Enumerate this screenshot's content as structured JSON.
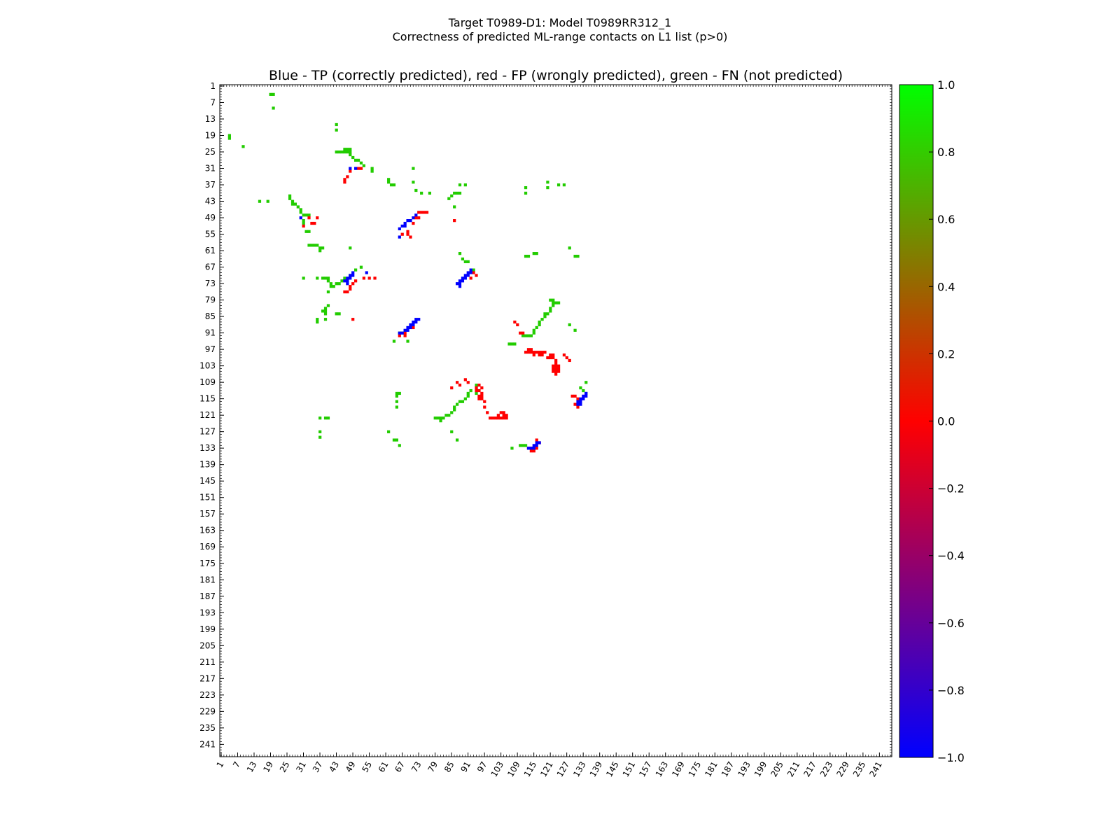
{
  "suptitle_line1": "Target T0989-D1: Model T0989RR312_1",
  "suptitle_line2": "Correctness of predicted ML-range contacts on L1 list (p>0)",
  "chart_data": {
    "type": "heatmap",
    "title": "Blue - TP (correctly predicted), red - FP (wrongly predicted), green - FN (not predicted)",
    "xlabel": "",
    "ylabel": "",
    "xlim": [
      1,
      245
    ],
    "ylim": [
      245,
      1
    ],
    "y_axis_inverted": true,
    "x_tick_labels": [
      "1",
      "7",
      "13",
      "19",
      "25",
      "31",
      "37",
      "43",
      "49",
      "55",
      "61",
      "67",
      "73",
      "79",
      "85",
      "91",
      "97",
      "103",
      "109",
      "115",
      "121",
      "127",
      "133",
      "139",
      "145",
      "151",
      "157",
      "163",
      "169",
      "175",
      "181",
      "187",
      "193",
      "199",
      "205",
      "211",
      "217",
      "223",
      "229",
      "235",
      "241"
    ],
    "y_tick_labels": [
      "1",
      "7",
      "13",
      "19",
      "25",
      "31",
      "37",
      "43",
      "49",
      "55",
      "61",
      "67",
      "73",
      "79",
      "85",
      "91",
      "97",
      "103",
      "109",
      "115",
      "121",
      "127",
      "133",
      "139",
      "145",
      "151",
      "157",
      "163",
      "169",
      "175",
      "181",
      "187",
      "193",
      "199",
      "205",
      "211",
      "217",
      "223",
      "229",
      "235",
      "241"
    ],
    "colorbar": {
      "range": [
        -1.0,
        1.0
      ],
      "colors": [
        "#0000ff",
        "#ff0000",
        "#00ff00"
      ],
      "tick_labels": [
        "1.0",
        "0.8",
        "0.6",
        "0.4",
        "0.2",
        "0.0",
        "−0.2",
        "−0.4",
        "−0.6",
        "−0.8",
        "−1.0"
      ]
    },
    "category_colors": {
      "TP": "#0000ff",
      "FP": "#ff0000",
      "FN": "#22cc00"
    },
    "cells": {
      "FN": [
        [
          19,
          4
        ],
        [
          20,
          4
        ],
        [
          20,
          9
        ],
        [
          4,
          19
        ],
        [
          4,
          20
        ],
        [
          9,
          23
        ],
        [
          43,
          15
        ],
        [
          43,
          17
        ],
        [
          43,
          25
        ],
        [
          44,
          25
        ],
        [
          45,
          25
        ],
        [
          46,
          24
        ],
        [
          47,
          24
        ],
        [
          48,
          24
        ],
        [
          46,
          25
        ],
        [
          47,
          25
        ],
        [
          48,
          25
        ],
        [
          48,
          26
        ],
        [
          49,
          27
        ],
        [
          50,
          28
        ],
        [
          51,
          28
        ],
        [
          52,
          29
        ],
        [
          53,
          30
        ],
        [
          56,
          31
        ],
        [
          56,
          32
        ],
        [
          62,
          35
        ],
        [
          62,
          36
        ],
        [
          63,
          37
        ],
        [
          64,
          37
        ],
        [
          71,
          31
        ],
        [
          71,
          36
        ],
        [
          72,
          39
        ],
        [
          74,
          40
        ],
        [
          77,
          40
        ],
        [
          84,
          42
        ],
        [
          85,
          41
        ],
        [
          86,
          40
        ],
        [
          87,
          40
        ],
        [
          88,
          40
        ],
        [
          90,
          37
        ],
        [
          88,
          37
        ],
        [
          86,
          45
        ],
        [
          15,
          43
        ],
        [
          18,
          43
        ],
        [
          26,
          41
        ],
        [
          26,
          42
        ],
        [
          27,
          43
        ],
        [
          27,
          44
        ],
        [
          28,
          44
        ],
        [
          29,
          45
        ],
        [
          30,
          46
        ],
        [
          30,
          47
        ],
        [
          31,
          48
        ],
        [
          32,
          48
        ],
        [
          33,
          48
        ],
        [
          31,
          50
        ],
        [
          31,
          51
        ],
        [
          32,
          54
        ],
        [
          33,
          54
        ],
        [
          33,
          59
        ],
        [
          34,
          59
        ],
        [
          35,
          59
        ],
        [
          36,
          59
        ],
        [
          37,
          60
        ],
        [
          37,
          61
        ],
        [
          38,
          60
        ],
        [
          31,
          71
        ],
        [
          36,
          71
        ],
        [
          38,
          71
        ],
        [
          39,
          71
        ],
        [
          40,
          71
        ],
        [
          40,
          72
        ],
        [
          41,
          73
        ],
        [
          41,
          74
        ],
        [
          42,
          74
        ],
        [
          40,
          76
        ],
        [
          43,
          73
        ],
        [
          44,
          73
        ],
        [
          45,
          72
        ],
        [
          46,
          71
        ],
        [
          48,
          70
        ],
        [
          50,
          68
        ],
        [
          52,
          67
        ],
        [
          48,
          60
        ],
        [
          40,
          81
        ],
        [
          39,
          82
        ],
        [
          38,
          83
        ],
        [
          39,
          83
        ],
        [
          39,
          84
        ],
        [
          36,
          86
        ],
        [
          36,
          87
        ],
        [
          39,
          86
        ],
        [
          43,
          84
        ],
        [
          44,
          84
        ],
        [
          64,
          94
        ],
        [
          69,
          94
        ],
        [
          66,
          91
        ],
        [
          67,
          91
        ],
        [
          88,
          62
        ],
        [
          89,
          64
        ],
        [
          90,
          65
        ],
        [
          91,
          65
        ],
        [
          93,
          68
        ],
        [
          112,
          63
        ],
        [
          113,
          63
        ],
        [
          115,
          62
        ],
        [
          116,
          62
        ],
        [
          128,
          60
        ],
        [
          130,
          63
        ],
        [
          131,
          63
        ],
        [
          111,
          92
        ],
        [
          112,
          92
        ],
        [
          113,
          92
        ],
        [
          114,
          92
        ],
        [
          115,
          91
        ],
        [
          115,
          90
        ],
        [
          116,
          89
        ],
        [
          117,
          88
        ],
        [
          117,
          87
        ],
        [
          118,
          86
        ],
        [
          119,
          85
        ],
        [
          119,
          84
        ],
        [
          120,
          84
        ],
        [
          121,
          83
        ],
        [
          121,
          82
        ],
        [
          122,
          81
        ],
        [
          122,
          80
        ],
        [
          121,
          79
        ],
        [
          122,
          79
        ],
        [
          123,
          80
        ],
        [
          124,
          80
        ],
        [
          106,
          95
        ],
        [
          107,
          95
        ],
        [
          108,
          95
        ],
        [
          128,
          88
        ],
        [
          130,
          90
        ],
        [
          112,
          38
        ],
        [
          112,
          40
        ],
        [
          120,
          38
        ],
        [
          120,
          36
        ],
        [
          124,
          37
        ],
        [
          126,
          37
        ],
        [
          65,
          113
        ],
        [
          66,
          113
        ],
        [
          65,
          114
        ],
        [
          65,
          116
        ],
        [
          65,
          118
        ],
        [
          64,
          130
        ],
        [
          65,
          130
        ],
        [
          66,
          132
        ],
        [
          62,
          127
        ],
        [
          37,
          122
        ],
        [
          39,
          122
        ],
        [
          40,
          122
        ],
        [
          37,
          127
        ],
        [
          37,
          129
        ],
        [
          79,
          122
        ],
        [
          80,
          122
        ],
        [
          81,
          122
        ],
        [
          81,
          123
        ],
        [
          82,
          122
        ],
        [
          83,
          121
        ],
        [
          84,
          121
        ],
        [
          85,
          120
        ],
        [
          86,
          119
        ],
        [
          86,
          118
        ],
        [
          87,
          117
        ],
        [
          88,
          116
        ],
        [
          89,
          116
        ],
        [
          90,
          115
        ],
        [
          91,
          114
        ],
        [
          91,
          113
        ],
        [
          85,
          127
        ],
        [
          87,
          130
        ],
        [
          94,
          110
        ],
        [
          94,
          111
        ],
        [
          94,
          113
        ],
        [
          92,
          112
        ],
        [
          107,
          133
        ],
        [
          110,
          132
        ],
        [
          111,
          132
        ],
        [
          112,
          132
        ],
        [
          132,
          111
        ],
        [
          133,
          112
        ],
        [
          134,
          113
        ],
        [
          134,
          109
        ]
      ],
      "TP": [
        [
          48,
          31
        ],
        [
          50,
          31
        ],
        [
          30,
          49
        ],
        [
          49,
          69
        ],
        [
          48,
          70
        ],
        [
          49,
          70
        ],
        [
          47,
          71
        ],
        [
          48,
          71
        ],
        [
          46,
          72
        ],
        [
          47,
          72
        ],
        [
          47,
          73
        ],
        [
          54,
          69
        ],
        [
          72,
          48
        ],
        [
          71,
          49
        ],
        [
          70,
          50
        ],
        [
          69,
          50
        ],
        [
          68,
          51
        ],
        [
          67,
          52
        ],
        [
          68,
          52
        ],
        [
          66,
          53
        ],
        [
          66,
          56
        ],
        [
          92,
          68
        ],
        [
          91,
          69
        ],
        [
          92,
          69
        ],
        [
          90,
          70
        ],
        [
          91,
          70
        ],
        [
          89,
          71
        ],
        [
          90,
          71
        ],
        [
          88,
          72
        ],
        [
          89,
          72
        ],
        [
          87,
          73
        ],
        [
          88,
          73
        ],
        [
          88,
          74
        ],
        [
          72,
          86
        ],
        [
          73,
          86
        ],
        [
          71,
          87
        ],
        [
          72,
          87
        ],
        [
          70,
          88
        ],
        [
          71,
          88
        ],
        [
          69,
          89
        ],
        [
          70,
          89
        ],
        [
          68,
          90
        ],
        [
          69,
          90
        ],
        [
          66,
          91
        ],
        [
          67,
          91
        ],
        [
          115,
          132
        ],
        [
          116,
          131
        ],
        [
          114,
          133
        ],
        [
          115,
          133
        ],
        [
          113,
          133
        ],
        [
          116,
          132
        ],
        [
          117,
          131
        ],
        [
          131,
          117
        ],
        [
          132,
          117
        ],
        [
          132,
          116
        ],
        [
          133,
          115
        ],
        [
          133,
          114
        ],
        [
          134,
          114
        ],
        [
          134,
          113
        ],
        [
          131,
          116
        ],
        [
          132,
          115
        ]
      ],
      "FP": [
        [
          46,
          35
        ],
        [
          46,
          36
        ],
        [
          47,
          34
        ],
        [
          51,
          31
        ],
        [
          52,
          31
        ],
        [
          48,
          32
        ],
        [
          73,
          47
        ],
        [
          74,
          47
        ],
        [
          75,
          47
        ],
        [
          76,
          47
        ],
        [
          72,
          49
        ],
        [
          73,
          49
        ],
        [
          71,
          51
        ],
        [
          69,
          54
        ],
        [
          69,
          55
        ],
        [
          70,
          56
        ],
        [
          67,
          55
        ],
        [
          86,
          50
        ],
        [
          33,
          49
        ],
        [
          34,
          51
        ],
        [
          35,
          51
        ],
        [
          31,
          52
        ],
        [
          36,
          49
        ],
        [
          50,
          72
        ],
        [
          49,
          73
        ],
        [
          48,
          74
        ],
        [
          48,
          75
        ],
        [
          47,
          76
        ],
        [
          46,
          76
        ],
        [
          55,
          71
        ],
        [
          57,
          71
        ],
        [
          53,
          71
        ],
        [
          49,
          86
        ],
        [
          92,
          71
        ],
        [
          94,
          70
        ],
        [
          93,
          69
        ],
        [
          71,
          89
        ],
        [
          68,
          91
        ],
        [
          68,
          92
        ],
        [
          66,
          92
        ],
        [
          108,
          87
        ],
        [
          109,
          88
        ],
        [
          110,
          91
        ],
        [
          111,
          91
        ],
        [
          112,
          98
        ],
        [
          113,
          98
        ],
        [
          114,
          98
        ],
        [
          115,
          98
        ],
        [
          116,
          98
        ],
        [
          117,
          98
        ],
        [
          118,
          98
        ],
        [
          119,
          98
        ],
        [
          115,
          99
        ],
        [
          117,
          99
        ],
        [
          118,
          99
        ],
        [
          121,
          99
        ],
        [
          122,
          99
        ],
        [
          121,
          100
        ],
        [
          122,
          100
        ],
        [
          123,
          101
        ],
        [
          120,
          100
        ],
        [
          113,
          97
        ],
        [
          114,
          97
        ],
        [
          123,
          102
        ],
        [
          122,
          103
        ],
        [
          123,
          103
        ],
        [
          124,
          103
        ],
        [
          122,
          104
        ],
        [
          123,
          104
        ],
        [
          124,
          104
        ],
        [
          122,
          105
        ],
        [
          123,
          105
        ],
        [
          124,
          105
        ],
        [
          123,
          106
        ],
        [
          127,
          100
        ],
        [
          128,
          101
        ],
        [
          126,
          99
        ],
        [
          91,
          109
        ],
        [
          90,
          108
        ],
        [
          87,
          109
        ],
        [
          88,
          110
        ],
        [
          85,
          111
        ],
        [
          94,
          111
        ],
        [
          95,
          110
        ],
        [
          95,
          112
        ],
        [
          96,
          111
        ],
        [
          94,
          112
        ],
        [
          96,
          113
        ],
        [
          95,
          114
        ],
        [
          95,
          115
        ],
        [
          96,
          115
        ],
        [
          97,
          116
        ],
        [
          96,
          114
        ],
        [
          97,
          118
        ],
        [
          98,
          120
        ],
        [
          101,
          122
        ],
        [
          102,
          121
        ],
        [
          103,
          120
        ],
        [
          104,
          120
        ],
        [
          104,
          121
        ],
        [
          105,
          121
        ],
        [
          103,
          122
        ],
        [
          102,
          122
        ],
        [
          104,
          122
        ],
        [
          105,
          122
        ],
        [
          100,
          122
        ],
        [
          99,
          122
        ],
        [
          114,
          133
        ],
        [
          113,
          133
        ],
        [
          114,
          134
        ],
        [
          115,
          134
        ],
        [
          116,
          130
        ],
        [
          117,
          131
        ],
        [
          116,
          133
        ],
        [
          129,
          114
        ],
        [
          130,
          114
        ],
        [
          131,
          115
        ],
        [
          132,
          116
        ],
        [
          130,
          117
        ],
        [
          131,
          118
        ]
      ]
    }
  }
}
